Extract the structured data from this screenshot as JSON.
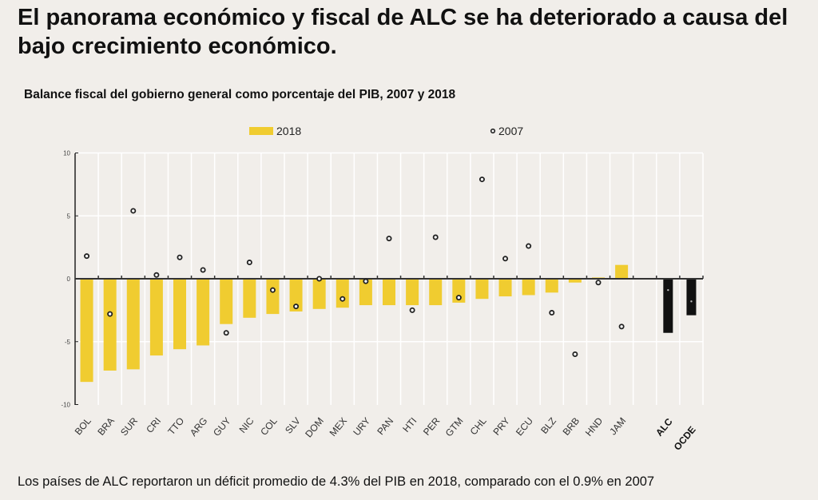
{
  "headline": "El panorama económico y fiscal de ALC se ha deteriorado a causa del bajo crecimiento económico.",
  "footer": "Los países de ALC reportaron un déficit promedio de 4.3% del PIB en 2018, comparado con el 0.9% en 2007",
  "colors": {
    "bar_2018": "#f0cc30",
    "bar_aggregate": "#111111",
    "marker_2007": "#222222",
    "background": "#f1eeea"
  },
  "chart_data": {
    "type": "bar",
    "title": "Balance fiscal del gobierno general como porcentaje del PIB, 2007 y 2018",
    "xlabel": "",
    "ylabel": "",
    "ylim": [
      -10,
      10
    ],
    "yticks": [
      "10",
      "5",
      "0",
      "-5",
      "-10"
    ],
    "grid": true,
    "legend": "top",
    "categories": [
      "BOL",
      "BRA",
      "SUR",
      "CRI",
      "TTO",
      "ARG",
      "GUY",
      "NIC",
      "COL",
      "SLV",
      "DOM",
      "MEX",
      "URY",
      "PAN",
      "HTI",
      "PER",
      "GTM",
      "CHL",
      "PRY",
      "ECU",
      "BLZ",
      "BRB",
      "HND",
      "JAM",
      "ALC",
      "OCDE"
    ],
    "highlighted": [
      "ALC",
      "OCDE"
    ],
    "series": [
      {
        "name": "2018",
        "kind": "bar",
        "values": [
          -8.2,
          -7.3,
          -7.2,
          -6.1,
          -5.6,
          -5.3,
          -3.6,
          -3.1,
          -2.8,
          -2.6,
          -2.4,
          -2.3,
          -2.1,
          -2.1,
          -2.1,
          -2.1,
          -1.9,
          -1.6,
          -1.4,
          -1.3,
          -1.1,
          -0.3,
          0.1,
          1.1,
          -4.3,
          -2.9
        ]
      },
      {
        "name": "2007",
        "kind": "marker",
        "values": [
          1.8,
          -2.8,
          5.4,
          0.3,
          1.7,
          0.7,
          -4.3,
          1.3,
          -0.9,
          -2.2,
          0.0,
          -1.6,
          -0.2,
          3.2,
          -2.5,
          3.3,
          -1.5,
          7.9,
          1.6,
          2.6,
          -2.7,
          -6.0,
          -0.3,
          -3.8,
          -0.9,
          -1.8
        ]
      }
    ]
  }
}
